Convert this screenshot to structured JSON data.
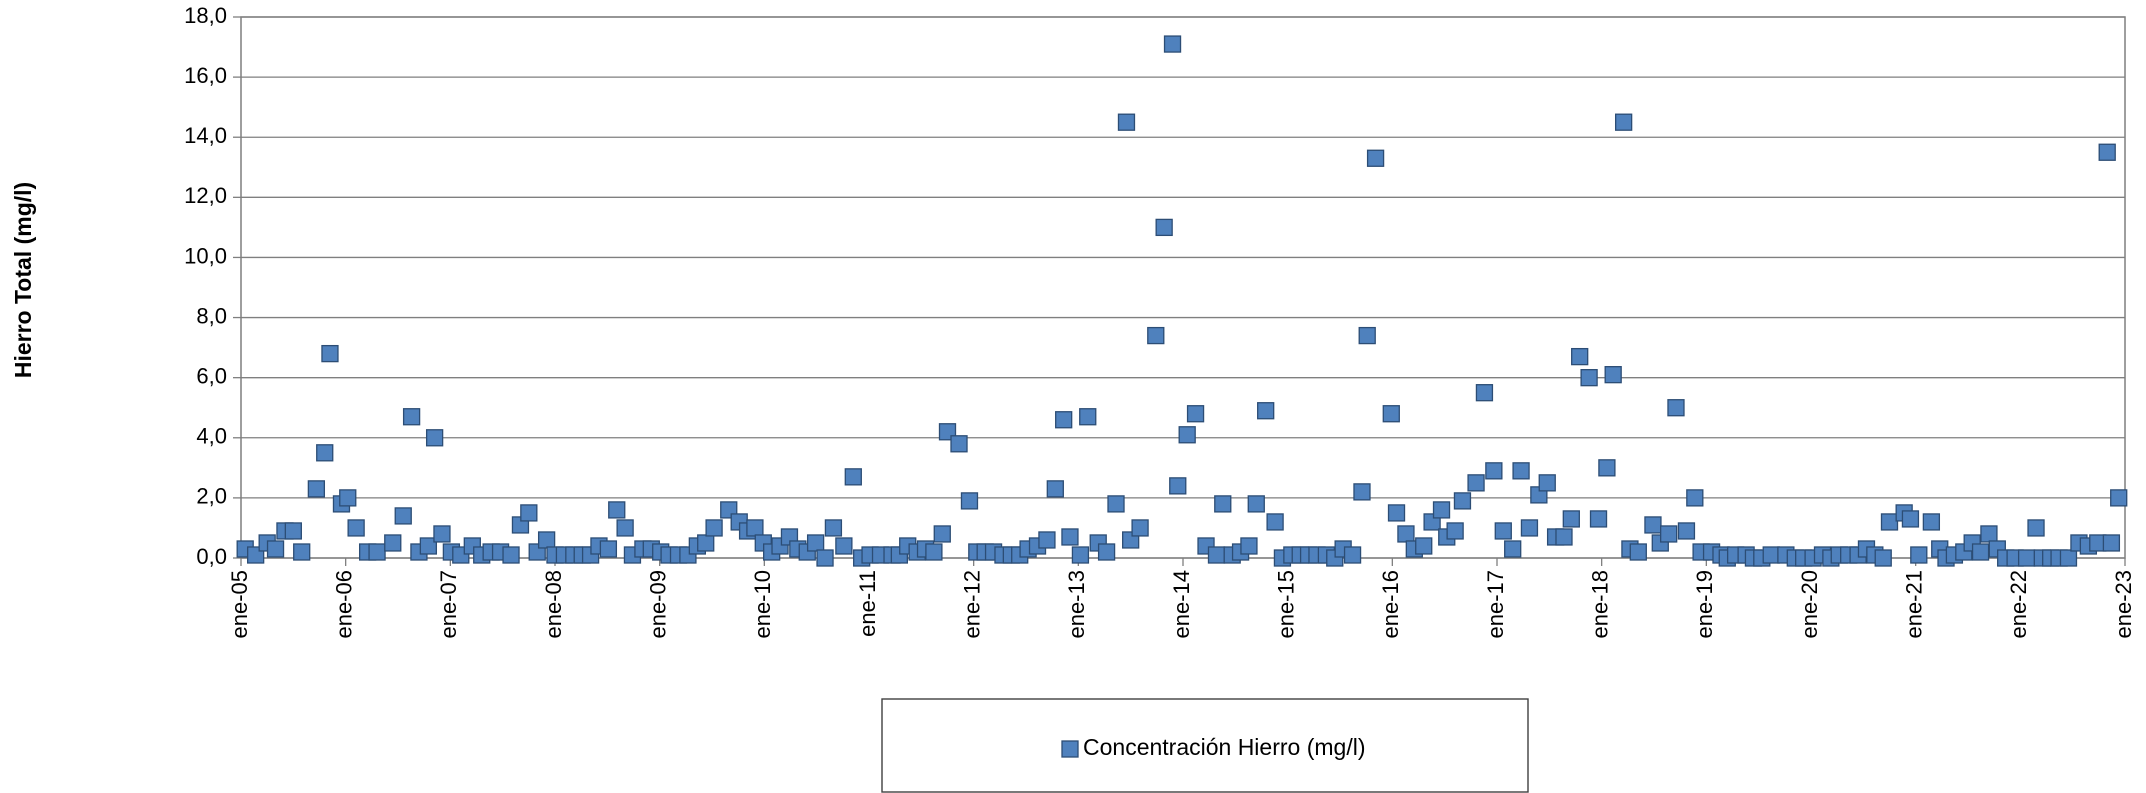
{
  "chart_data": {
    "type": "scatter",
    "y_label": "Hierro Total (mg/l)",
    "legend": "bottom",
    "grid": true,
    "xlim": [
      2005,
      2023
    ],
    "ylim": [
      0,
      18
    ],
    "xticks": [
      {
        "value": 2005,
        "label": "ene-05"
      },
      {
        "value": 2006,
        "label": "ene-06"
      },
      {
        "value": 2007,
        "label": "ene-07"
      },
      {
        "value": 2008,
        "label": "ene-08"
      },
      {
        "value": 2009,
        "label": "ene-09"
      },
      {
        "value": 2010,
        "label": "ene-10"
      },
      {
        "value": 2011,
        "label": "ene-11"
      },
      {
        "value": 2012,
        "label": "ene-12"
      },
      {
        "value": 2013,
        "label": "ene-13"
      },
      {
        "value": 2014,
        "label": "ene-14"
      },
      {
        "value": 2015,
        "label": "ene-15"
      },
      {
        "value": 2016,
        "label": "ene-16"
      },
      {
        "value": 2017,
        "label": "ene-17"
      },
      {
        "value": 2018,
        "label": "ene-18"
      },
      {
        "value": 2019,
        "label": "ene-19"
      },
      {
        "value": 2020,
        "label": "ene-20"
      },
      {
        "value": 2021,
        "label": "ene-21"
      },
      {
        "value": 2022,
        "label": "ene-22"
      },
      {
        "value": 2023,
        "label": "ene-23"
      }
    ],
    "yticks": [
      {
        "value": 0,
        "label": "0,0"
      },
      {
        "value": 2,
        "label": "2,0"
      },
      {
        "value": 4,
        "label": "4,0"
      },
      {
        "value": 6,
        "label": "6,0"
      },
      {
        "value": 8,
        "label": "8,0"
      },
      {
        "value": 10,
        "label": "10,0"
      },
      {
        "value": 12,
        "label": "12,0"
      },
      {
        "value": 14,
        "label": "14,0"
      },
      {
        "value": 16,
        "label": "16,0"
      },
      {
        "value": 18,
        "label": "18,0"
      }
    ],
    "x": [
      2005.04,
      2005.14,
      2005.25,
      2005.33,
      2005.42,
      2005.5,
      2005.58,
      2005.72,
      2005.8,
      2005.85,
      2005.96,
      2006.02,
      2006.1,
      2006.21,
      2006.3,
      2006.45,
      2006.55,
      2006.63,
      2006.7,
      2006.79,
      2006.85,
      2006.92,
      2007.01,
      2007.1,
      2007.21,
      2007.3,
      2007.39,
      2007.48,
      2007.58,
      2007.67,
      2007.75,
      2007.83,
      2007.92,
      2008.0,
      2008.09,
      2008.18,
      2008.26,
      2008.34,
      2008.42,
      2008.51,
      2008.59,
      2008.67,
      2008.74,
      2008.84,
      2008.92,
      2009.01,
      2009.09,
      2009.18,
      2009.27,
      2009.36,
      2009.44,
      2009.52,
      2009.66,
      2009.76,
      2009.84,
      2009.91,
      2009.99,
      2010.07,
      2010.15,
      2010.24,
      2010.32,
      2010.41,
      2010.49,
      2010.58,
      2010.66,
      2010.76,
      2010.85,
      2010.93,
      2011.01,
      2011.11,
      2011.22,
      2011.29,
      2011.37,
      2011.46,
      2011.54,
      2011.62,
      2011.7,
      2011.75,
      2011.86,
      2011.96,
      2012.03,
      2012.11,
      2012.19,
      2012.28,
      2012.36,
      2012.44,
      2012.52,
      2012.61,
      2012.7,
      2012.78,
      2012.86,
      2012.92,
      2013.02,
      2013.09,
      2013.19,
      2013.27,
      2013.36,
      2013.46,
      2013.5,
      2013.59,
      2013.74,
      2013.82,
      2013.9,
      2013.95,
      2014.04,
      2014.12,
      2014.22,
      2014.32,
      2014.38,
      2014.47,
      2014.55,
      2014.63,
      2014.7,
      2014.79,
      2014.88,
      2014.95,
      2015.04,
      2015.12,
      2015.2,
      2015.28,
      2015.37,
      2015.45,
      2015.53,
      2015.62,
      2015.71,
      2015.76,
      2015.84,
      2015.99,
      2016.04,
      2016.13,
      2016.21,
      2016.3,
      2016.38,
      2016.47,
      2016.52,
      2016.6,
      2016.67,
      2016.8,
      2016.88,
      2016.97,
      2017.06,
      2017.15,
      2017.23,
      2017.31,
      2017.4,
      2017.48,
      2017.56,
      2017.64,
      2017.71,
      2017.79,
      2017.88,
      2017.97,
      2018.05,
      2018.11,
      2018.21,
      2018.27,
      2018.35,
      2018.49,
      2018.56,
      2018.64,
      2018.71,
      2018.81,
      2018.89,
      2018.95,
      2019.05,
      2019.14,
      2019.2,
      2019.28,
      2019.38,
      2019.45,
      2019.53,
      2019.62,
      2019.76,
      2019.85,
      2019.93,
      2020.02,
      2020.11,
      2020.19,
      2020.27,
      2020.36,
      2020.45,
      2020.53,
      2020.61,
      2020.69,
      2020.75,
      2020.89,
      2020.95,
      2021.03,
      2021.15,
      2021.23,
      2021.29,
      2021.37,
      2021.46,
      2021.54,
      2021.62,
      2021.7,
      2021.78,
      2021.86,
      2021.95,
      2022.06,
      2022.15,
      2022.21,
      2022.29,
      2022.37,
      2022.46,
      2022.56,
      2022.65,
      2022.74,
      2022.83,
      2022.87,
      2022.94
    ],
    "series": [
      {
        "name": "Concentración Hierro (mg/l)",
        "color": "#4f81bd",
        "values": [
          0.3,
          0.1,
          0.5,
          0.3,
          0.9,
          0.9,
          0.2,
          2.3,
          3.5,
          6.8,
          1.8,
          2.0,
          1.0,
          0.2,
          0.2,
          0.5,
          1.4,
          4.7,
          0.2,
          0.4,
          4.0,
          0.8,
          0.2,
          0.1,
          0.4,
          0.1,
          0.2,
          0.2,
          0.1,
          1.1,
          1.5,
          0.2,
          0.6,
          0.1,
          0.1,
          0.1,
          0.1,
          0.1,
          0.4,
          0.3,
          1.6,
          1.0,
          0.1,
          0.3,
          0.3,
          0.2,
          0.1,
          0.1,
          0.1,
          0.4,
          0.5,
          1.0,
          1.6,
          1.2,
          0.9,
          1.0,
          0.5,
          0.2,
          0.4,
          0.7,
          0.3,
          0.2,
          0.5,
          0.0,
          1.0,
          0.4,
          2.7,
          0.0,
          0.1,
          0.1,
          0.1,
          0.1,
          0.4,
          0.2,
          0.3,
          0.2,
          0.8,
          4.2,
          3.8,
          1.9,
          0.2,
          0.2,
          0.2,
          0.1,
          0.1,
          0.1,
          0.3,
          0.4,
          0.6,
          2.3,
          4.6,
          0.7,
          0.1,
          4.7,
          0.5,
          0.2,
          1.8,
          14.5,
          0.6,
          1.0,
          7.4,
          11.0,
          17.1,
          2.4,
          4.1,
          4.8,
          0.4,
          0.1,
          1.8,
          0.1,
          0.2,
          0.4,
          1.8,
          4.9,
          1.2,
          0.0,
          0.1,
          0.1,
          0.1,
          0.1,
          0.1,
          0.0,
          0.3,
          0.1,
          2.2,
          7.4,
          13.3,
          4.8,
          1.5,
          0.8,
          0.3,
          0.4,
          1.2,
          1.6,
          0.7,
          0.9,
          1.9,
          2.5,
          5.5,
          2.9,
          0.9,
          0.3,
          2.9,
          1.0,
          2.1,
          2.5,
          0.7,
          0.7,
          1.3,
          6.7,
          6.0,
          1.3,
          3.0,
          6.1,
          14.5,
          0.3,
          0.2,
          1.1,
          0.5,
          0.8,
          5.0,
          0.9,
          2.0,
          0.2,
          0.2,
          0.1,
          0.0,
          0.1,
          0.1,
          0.0,
          0.0,
          0.1,
          0.1,
          0.0,
          0.0,
          0.0,
          0.1,
          0.0,
          0.1,
          0.1,
          0.1,
          0.3,
          0.1,
          0.0,
          1.2,
          1.5,
          1.3,
          0.1,
          1.2,
          0.3,
          0.0,
          0.1,
          0.2,
          0.5,
          0.2,
          0.8,
          0.3,
          0.0,
          0.0,
          0.0,
          1.0,
          0.0,
          0.0,
          0.0,
          0.0,
          0.5,
          0.4,
          0.5,
          13.5,
          0.5,
          2.0
        ]
      }
    ]
  }
}
